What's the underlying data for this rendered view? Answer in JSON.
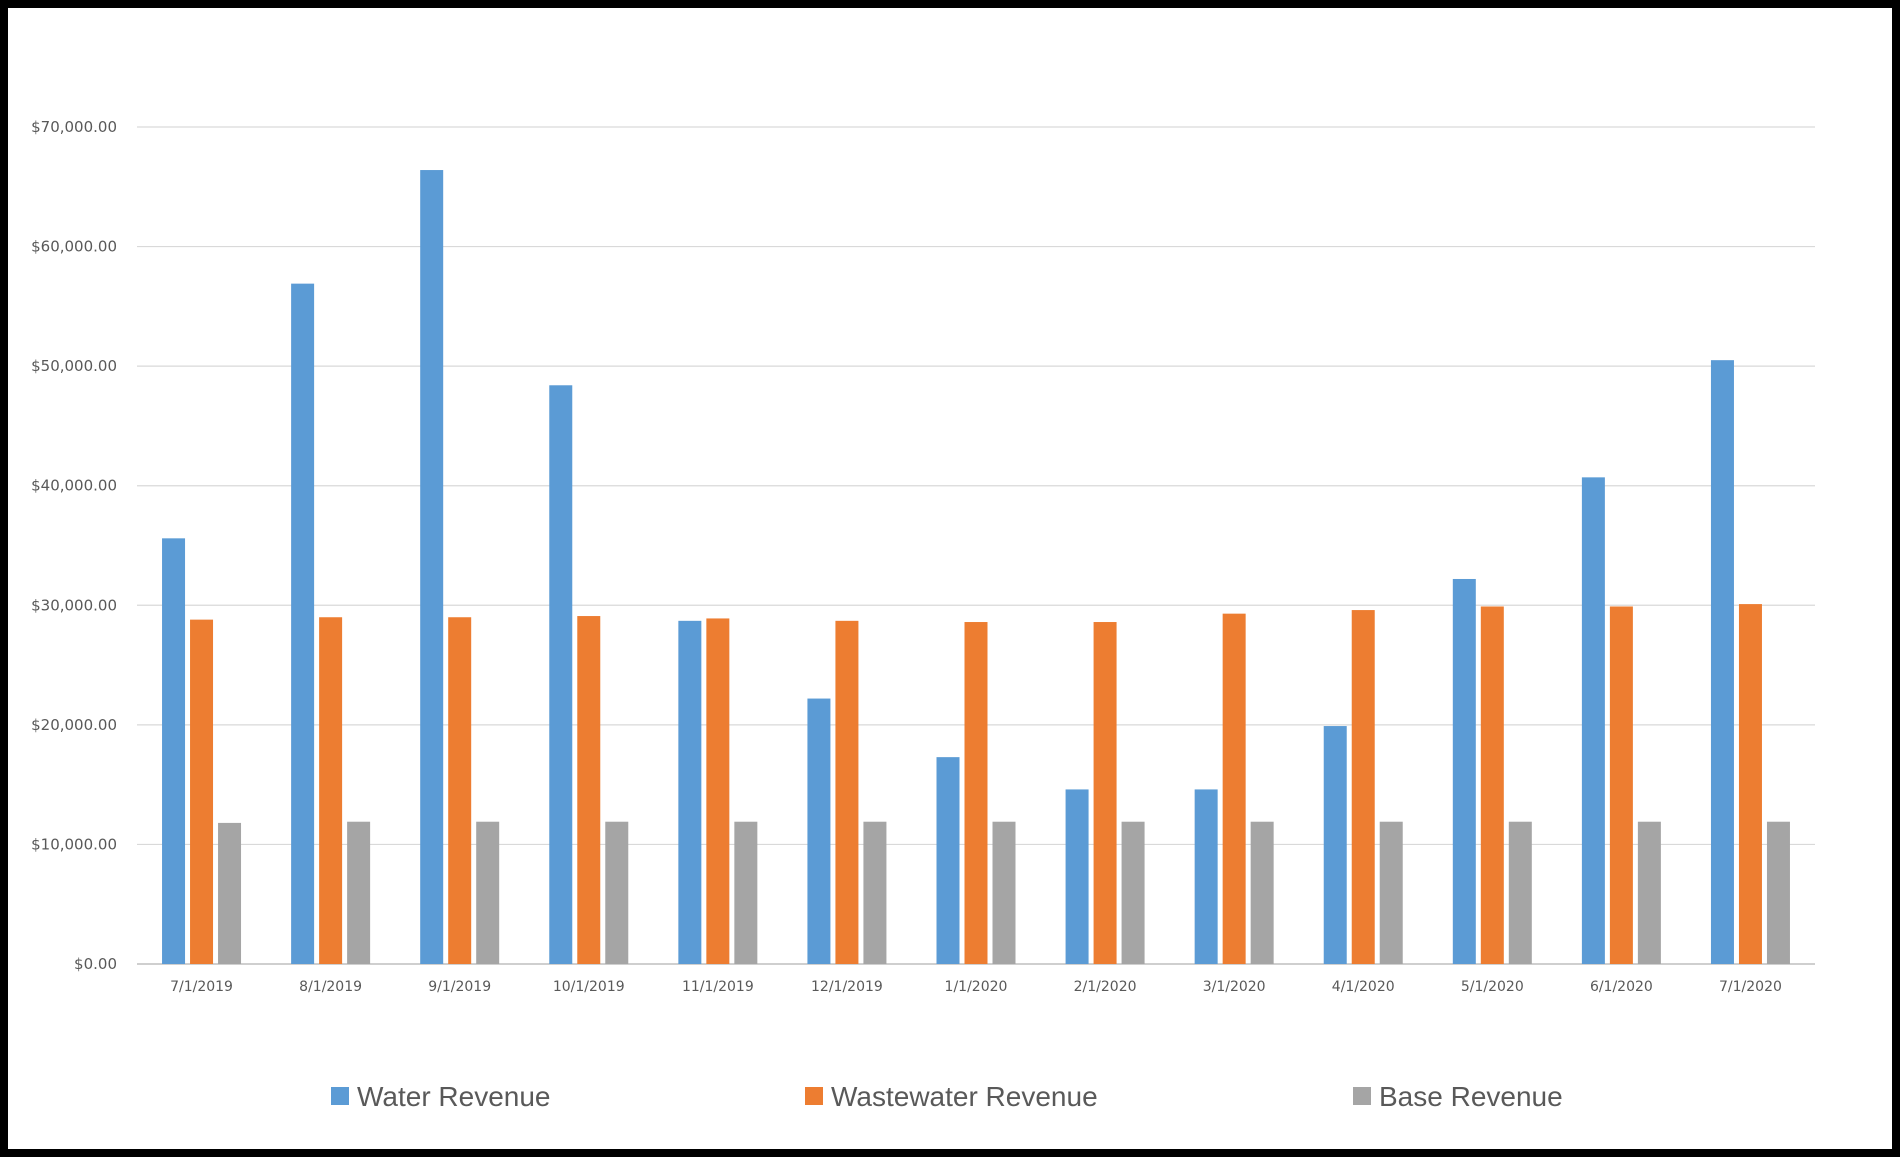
{
  "chart_data": {
    "type": "bar",
    "title": "",
    "xlabel": "",
    "ylabel": "",
    "categories": [
      "7/1/2019",
      "8/1/2019",
      "9/1/2019",
      "10/1/2019",
      "11/1/2019",
      "12/1/2019",
      "1/1/2020",
      "2/1/2020",
      "3/1/2020",
      "4/1/2020",
      "5/1/2020",
      "6/1/2020",
      "7/1/2020"
    ],
    "series": [
      {
        "name": "Water Revenue",
        "color": "#5B9BD5",
        "values": [
          35600,
          56900,
          66400,
          48400,
          28700,
          22200,
          17300,
          14600,
          14600,
          19900,
          32200,
          40700,
          50500
        ]
      },
      {
        "name": "Wastewater Revenue",
        "color": "#ED7D31",
        "values": [
          28800,
          29000,
          29000,
          29100,
          28900,
          28700,
          28600,
          28600,
          29300,
          29600,
          29900,
          29900,
          30100
        ]
      },
      {
        "name": "Base Revenue",
        "color": "#A5A5A5",
        "values": [
          11800,
          11900,
          11900,
          11900,
          11900,
          11900,
          11900,
          11900,
          11900,
          11900,
          11900,
          11900,
          11900
        ]
      }
    ],
    "ylim": [
      0,
      70000
    ],
    "yticks": [
      0,
      10000,
      20000,
      30000,
      40000,
      50000,
      60000,
      70000
    ],
    "ytick_labels": [
      "$0.00",
      "$10,000.00",
      "$20,000.00",
      "$30,000.00",
      "$40,000.00",
      "$50,000.00",
      "$60,000.00",
      "$70,000.00"
    ],
    "grid": true,
    "legend_position": "bottom"
  }
}
